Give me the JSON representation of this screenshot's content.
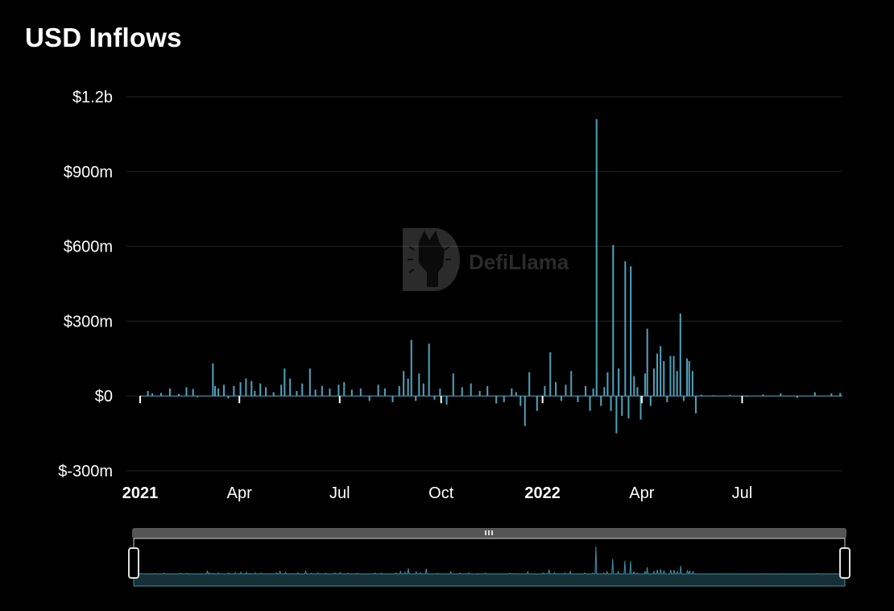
{
  "page": {
    "title": "USD Inflows",
    "watermark": "DefiLlama"
  },
  "colors": {
    "bar": "#4fa3bd",
    "grid": "#262626",
    "slider_track": "#555555",
    "slider_fill": "#163037"
  },
  "chart_data": {
    "type": "bar",
    "title": "USD Inflows",
    "x_range": [
      "2021-01-01",
      "2022-09-30"
    ],
    "ylim": [
      -300000000,
      1200000000
    ],
    "y_ticks": [
      {
        "value": 1200000000,
        "label": "$1.2b"
      },
      {
        "value": 900000000,
        "label": "$900m"
      },
      {
        "value": 600000000,
        "label": "$600m"
      },
      {
        "value": 300000000,
        "label": "$300m"
      },
      {
        "value": 0,
        "label": "$0"
      },
      {
        "value": -300000000,
        "label": "$-300m"
      }
    ],
    "x_ticks": [
      {
        "date": "2021-01-01",
        "label": "2021",
        "major": true
      },
      {
        "date": "2021-04-01",
        "label": "Apr",
        "major": false
      },
      {
        "date": "2021-07-01",
        "label": "Jul",
        "major": false
      },
      {
        "date": "2021-10-01",
        "label": "Oct",
        "major": false
      },
      {
        "date": "2022-01-01",
        "label": "2022",
        "major": true
      },
      {
        "date": "2022-04-01",
        "label": "Apr",
        "major": false
      },
      {
        "date": "2022-07-01",
        "label": "Jul",
        "major": false
      }
    ],
    "grid": true,
    "series": [
      {
        "x": [
          "2021-01-08",
          "2021-01-12",
          "2021-01-20",
          "2021-01-28",
          "2021-02-05",
          "2021-02-12",
          "2021-02-18",
          "2021-02-22",
          "2021-03-08",
          "2021-03-10",
          "2021-03-13",
          "2021-03-18",
          "2021-03-22",
          "2021-03-27",
          "2021-04-02",
          "2021-04-07",
          "2021-04-12",
          "2021-04-15",
          "2021-04-20",
          "2021-04-25",
          "2021-05-02",
          "2021-05-09",
          "2021-05-12",
          "2021-05-17",
          "2021-05-23",
          "2021-05-28",
          "2021-06-04",
          "2021-06-09",
          "2021-06-15",
          "2021-06-22",
          "2021-06-30",
          "2021-07-05",
          "2021-07-12",
          "2021-07-20",
          "2021-07-28",
          "2021-08-05",
          "2021-08-11",
          "2021-08-18",
          "2021-08-24",
          "2021-08-28",
          "2021-09-01",
          "2021-09-04",
          "2021-09-08",
          "2021-09-11",
          "2021-09-15",
          "2021-09-20",
          "2021-09-25",
          "2021-09-30",
          "2021-10-06",
          "2021-10-12",
          "2021-10-20",
          "2021-10-28",
          "2021-11-05",
          "2021-11-12",
          "2021-11-20",
          "2021-11-27",
          "2021-12-04",
          "2021-12-08",
          "2021-12-12",
          "2021-12-16",
          "2021-12-20",
          "2021-12-27",
          "2022-01-03",
          "2022-01-08",
          "2022-01-13",
          "2022-01-18",
          "2022-01-22",
          "2022-01-27",
          "2022-02-02",
          "2022-02-09",
          "2022-02-13",
          "2022-02-16",
          "2022-02-19",
          "2022-02-23",
          "2022-02-26",
          "2022-03-01",
          "2022-03-04",
          "2022-03-06",
          "2022-03-09",
          "2022-03-11",
          "2022-03-14",
          "2022-03-17",
          "2022-03-20",
          "2022-03-22",
          "2022-03-25",
          "2022-03-28",
          "2022-03-31",
          "2022-04-04",
          "2022-04-06",
          "2022-04-09",
          "2022-04-12",
          "2022-04-15",
          "2022-04-18",
          "2022-04-21",
          "2022-04-24",
          "2022-04-27",
          "2022-04-30",
          "2022-05-03",
          "2022-05-06",
          "2022-05-09",
          "2022-05-12",
          "2022-05-14",
          "2022-05-17",
          "2022-05-20",
          "2022-05-25",
          "2022-06-05",
          "2022-06-20",
          "2022-07-05",
          "2022-07-20",
          "2022-08-05",
          "2022-08-20",
          "2022-09-05",
          "2022-09-20",
          "2022-09-28"
        ],
        "values": [
          20000000,
          10000000,
          12000000,
          30000000,
          8000000,
          35000000,
          28000000,
          -5000000,
          130000000,
          40000000,
          30000000,
          45000000,
          -10000000,
          40000000,
          55000000,
          70000000,
          60000000,
          20000000,
          50000000,
          35000000,
          15000000,
          45000000,
          110000000,
          70000000,
          20000000,
          50000000,
          110000000,
          25000000,
          40000000,
          30000000,
          45000000,
          55000000,
          25000000,
          30000000,
          -20000000,
          45000000,
          30000000,
          -25000000,
          40000000,
          100000000,
          70000000,
          225000000,
          -20000000,
          90000000,
          50000000,
          210000000,
          -15000000,
          30000000,
          -35000000,
          90000000,
          35000000,
          50000000,
          20000000,
          40000000,
          -30000000,
          -25000000,
          30000000,
          15000000,
          -40000000,
          -120000000,
          95000000,
          -60000000,
          40000000,
          175000000,
          55000000,
          -20000000,
          45000000,
          100000000,
          -25000000,
          40000000,
          -60000000,
          30000000,
          1110000000,
          -40000000,
          35000000,
          95000000,
          -60000000,
          605000000,
          -150000000,
          110000000,
          -80000000,
          540000000,
          -90000000,
          520000000,
          80000000,
          35000000,
          -95000000,
          90000000,
          270000000,
          -40000000,
          110000000,
          170000000,
          200000000,
          140000000,
          -25000000,
          160000000,
          160000000,
          100000000,
          330000000,
          -20000000,
          150000000,
          140000000,
          100000000,
          -70000000,
          5000000,
          3000000,
          4000000,
          -3000000,
          6000000,
          10000000,
          -8000000,
          15000000,
          10000000,
          12000000
        ]
      }
    ]
  }
}
